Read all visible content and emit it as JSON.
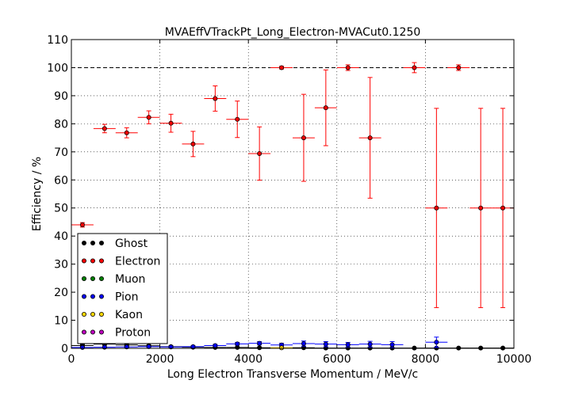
{
  "chart_data": {
    "type": "scatter",
    "title": "MVAEffVTrackPt_Long_Electron-MVACut0.1250",
    "xlabel": "Long Electron Transverse Momentum / MeV/c",
    "ylabel": "Efficiency / %",
    "xlim": [
      0,
      10000
    ],
    "ylim": [
      0,
      110
    ],
    "xticks": [
      0,
      2000,
      4000,
      6000,
      8000,
      10000
    ],
    "yticks": [
      0,
      10,
      20,
      30,
      40,
      50,
      60,
      70,
      80,
      90,
      100,
      110
    ],
    "grid": true,
    "reference_line": 100,
    "legend_position": "lower-left",
    "bin_half_width": 250,
    "series": [
      {
        "name": "Ghost",
        "color": "#000000",
        "x": [
          250,
          750,
          1250,
          1750,
          2250,
          2750,
          3250,
          3750,
          4250,
          4750,
          5250,
          5750,
          6250,
          6750,
          7250,
          7750,
          8250,
          8750,
          9250,
          9750
        ],
        "y": [
          1.0,
          1.5,
          1.2,
          0.9,
          0.6,
          0.4,
          0.3,
          0.3,
          0.2,
          0.2,
          0.2,
          0.1,
          0.1,
          0.1,
          0.1,
          0.1,
          0.1,
          0.1,
          0.1,
          0.1
        ],
        "err": [
          0.4,
          0.4,
          0.4,
          0.3,
          0.3,
          0.2,
          0.2,
          0.2,
          0.2,
          0.2,
          0.2,
          0.1,
          0.1,
          0.1,
          0.1,
          0.1,
          0.1,
          0.1,
          0.1,
          0.1
        ]
      },
      {
        "name": "Electron",
        "color": "#ff0000",
        "x": [
          250,
          750,
          1250,
          1750,
          2250,
          2750,
          3250,
          3750,
          4250,
          4750,
          5250,
          5750,
          6250,
          6750,
          7750,
          8250,
          8750,
          9250,
          9750
        ],
        "y": [
          44,
          78.3,
          76.8,
          82.3,
          80.2,
          72.8,
          89.0,
          81.6,
          69.4,
          100,
          75.0,
          85.7,
          100,
          75.0,
          100,
          50,
          100,
          50,
          50
        ],
        "err": [
          0.8,
          1.5,
          1.8,
          2.3,
          3.2,
          4.5,
          4.5,
          6.5,
          9.5,
          0.5,
          15.5,
          13.5,
          1.0,
          21.5,
          1.8,
          35.5,
          1.0,
          35.5,
          35.5
        ]
      },
      {
        "name": "Muon",
        "color": "#008000",
        "x": [],
        "y": [],
        "err": []
      },
      {
        "name": "Pion",
        "color": "#0000ff",
        "x": [
          250,
          750,
          1250,
          1750,
          2250,
          2750,
          3250,
          3750,
          4250,
          4750,
          5250,
          5750,
          6250,
          6750,
          7250,
          8250
        ],
        "y": [
          0.3,
          0.4,
          0.5,
          0.6,
          0.5,
          0.6,
          1.0,
          1.6,
          1.8,
          1.2,
          1.7,
          1.5,
          1.3,
          1.5,
          1.3,
          2.2
        ],
        "err": [
          0.1,
          0.1,
          0.2,
          0.2,
          0.2,
          0.3,
          0.4,
          0.5,
          0.6,
          0.6,
          0.9,
          0.9,
          0.8,
          1.0,
          1.1,
          1.8
        ]
      },
      {
        "name": "Kaon",
        "color": "#ffd700",
        "x": [
          4750
        ],
        "y": [
          0.2
        ],
        "err": [
          0.2
        ]
      },
      {
        "name": "Proton",
        "color": "#bf00bf",
        "x": [],
        "y": [],
        "err": []
      }
    ]
  }
}
